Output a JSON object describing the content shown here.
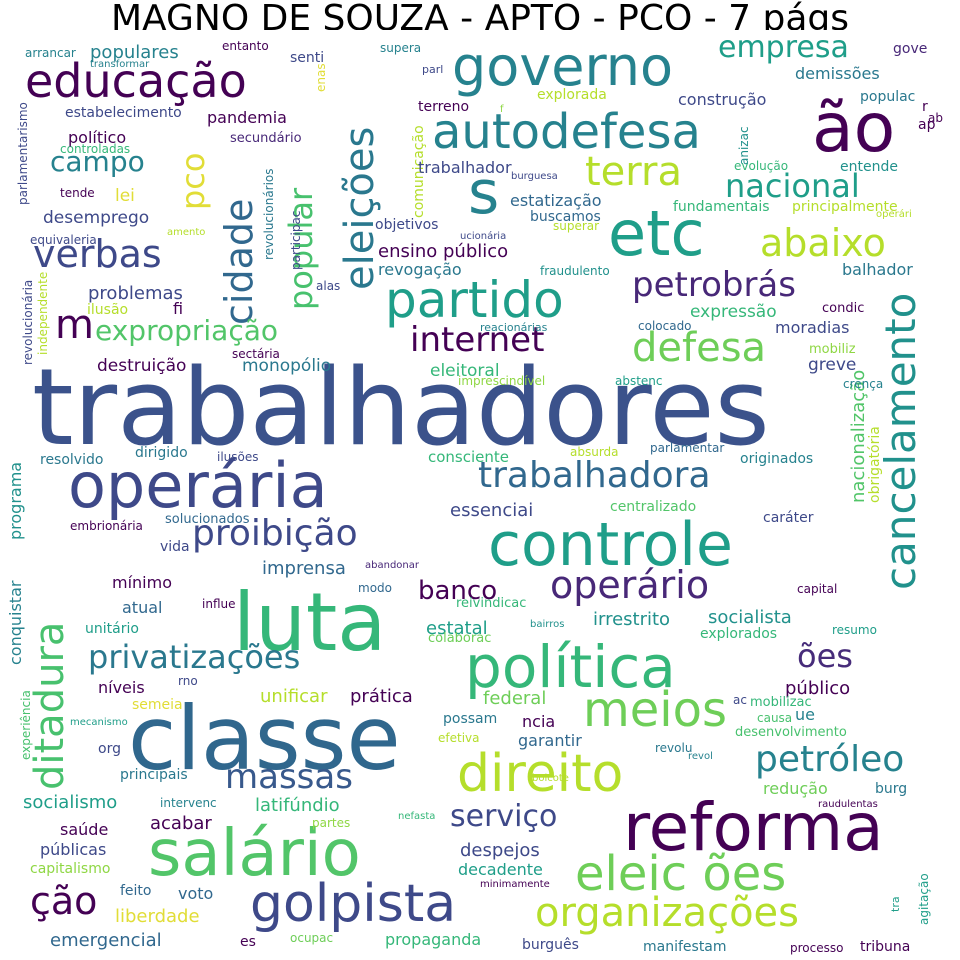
{
  "title": "MAGNO DE SOUZA - APTO - PCO - 7 págs",
  "words": [
    "trabalhadores",
    "classe",
    "luta",
    "política",
    "reforma",
    "controle",
    "operária",
    "salário",
    "direito",
    "golpista",
    "cancelamento",
    "governo",
    "educação",
    "autodefesa",
    "ão",
    "etc",
    "s",
    "partido",
    "eleições",
    "organizações",
    "eleic ões",
    "meios",
    "privatizações",
    "ditadura",
    "massas",
    "cidade",
    "verbas",
    "petróleo",
    "trabalhadora",
    "proibição",
    "operário",
    "petrobrás",
    "internet",
    "defesa",
    "abaixo",
    "nacional",
    "terra",
    "expropriação",
    "serviço",
    "ção",
    "m",
    "empresa",
    "popular",
    "pco",
    "campo",
    "banco",
    "ões",
    "público",
    "socialismo",
    "saúde",
    "públicas",
    "capitalismo",
    "emergencial",
    "liberdade",
    "voto",
    "feito",
    "es",
    "ocupac",
    "propaganda",
    "burguês",
    "manifestam",
    "processo",
    "tribuna",
    "agitação",
    "tra",
    "despejos",
    "decadente",
    "minimamente",
    "partes",
    "nefasta",
    "latifúndio",
    "intervenc",
    "acabar",
    "principais",
    "redução",
    "burg",
    "raudulentas",
    "causa",
    "desenvolvimento",
    "revolu",
    "revol",
    "garantir",
    "ncia",
    "possam",
    "efetiva",
    "boicote",
    "unificar",
    "prática",
    "federal",
    "ac",
    "mobilizac",
    "ue",
    "níveis",
    "rno",
    "semeia",
    "mecanismo",
    "org",
    "experiência",
    "conquistar",
    "unitário",
    "influe",
    "mínimo",
    "atual",
    "estatal",
    "irrestrito",
    "socialista",
    "explorados",
    "resumo",
    "capital",
    "colaborac",
    "bairros",
    "reivindicac",
    "modo",
    "abandonar",
    "imprensa",
    "vida",
    "solucionados",
    "essenciai",
    "centralizado",
    "caráter",
    "embrionária",
    "programa",
    "resolvido",
    "dirigido",
    "ilusões",
    "consciente",
    "absurda",
    "parlamentar",
    "originados",
    "nacionalização",
    "obrigatória",
    "destruição",
    "monopólio",
    "eleitoral",
    "imprescindível",
    "abstenc",
    "greve",
    "crença",
    "mobiliz",
    "moradias",
    "condic",
    "expressão",
    "colocado",
    "fi",
    "problemas",
    "ilusão",
    "sectária",
    "reacionárias",
    "independente",
    "revolucionária",
    "alas",
    "revogação",
    "fraudulento",
    "balhador",
    "ensino público",
    "buscamos",
    "superar",
    "objetivos",
    "ucionária",
    "estatização",
    "fundamentais",
    "principalmente",
    "operári",
    "desemprego",
    "lei",
    "equivaleria",
    "amento",
    "participac",
    "revolucionários",
    "comunicação",
    "burguesa",
    "tende",
    "controladas",
    "parlamentarismo",
    "político",
    "secundário",
    "trabalhador",
    "evolução",
    "anizac",
    "entende",
    "estabelecimento",
    "pandemia",
    "construção",
    "populac",
    "ap",
    "explorada",
    "terreno",
    "f",
    "r",
    "demissões",
    "populares",
    "senti",
    "enas",
    "transformar",
    "arrancar",
    "entanto",
    "supera",
    "parl",
    "gove",
    "ab"
  ],
  "colors": {
    "background": "#ffffff",
    "title": "#000000",
    "palette": [
      "#440154",
      "#482878",
      "#3e4989",
      "#31688e",
      "#26828e",
      "#1f9e89",
      "#35b779",
      "#6ece58",
      "#b5de2b",
      "#fde725"
    ]
  }
}
